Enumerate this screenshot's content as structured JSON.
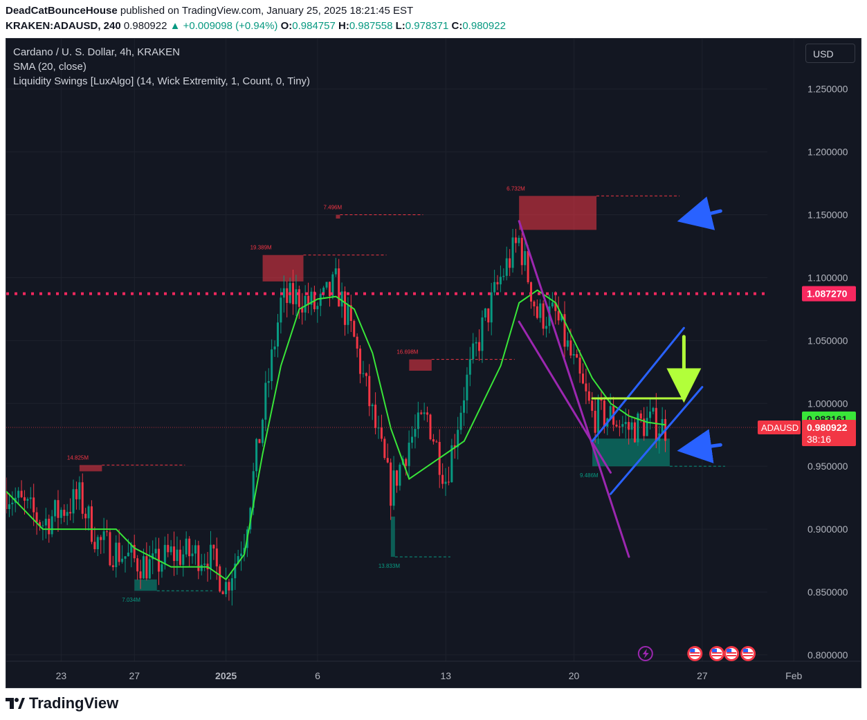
{
  "header": {
    "author": "DeadCatBounceHouse",
    "published": " published on TradingView.com, January 25, 2025 18:21:45 EST",
    "symbol": "KRAKEN:ADAUSD, 240",
    "last": "0.980922",
    "change": "▲ +0.009098 (+0.94%)",
    "o_label": "O:",
    "o": "0.984757",
    "h_label": "H:",
    "h": "0.987558",
    "l_label": "L:",
    "l": "0.978371",
    "c_label": "C:",
    "c": "0.980922"
  },
  "legend": {
    "title": "Cardano / U. S. Dollar, 4h, KRAKEN",
    "sma": "SMA (20, close)",
    "indicator": "Liquidity Swings [LuxAlgo] (14, Wick Extremity, 1, Count, 0, Tiny)"
  },
  "currency_button": "USD",
  "footer": {
    "brand": "TradingView"
  },
  "colors": {
    "background": "#131722",
    "up": "#089981",
    "down": "#f23645",
    "sma": "#39e639",
    "dotted_level": "#f7285f",
    "channel_purple": "#9c27b0",
    "channel_blue": "#2962ff",
    "target_green": "#b2ff3a"
  },
  "chart_data": {
    "type": "candlestick",
    "ylim": [
      0.795,
      1.29
    ],
    "y_ticks": [
      "1.250000",
      "1.200000",
      "1.150000",
      "1.100000",
      "1.050000",
      "1.000000",
      "0.950000",
      "0.900000",
      "0.850000",
      "0.800000"
    ],
    "x_ticks": [
      "23",
      "27",
      "2025",
      "6",
      "13",
      "20",
      "27",
      "Feb"
    ],
    "labels": {
      "dotted_level": "1.087270",
      "sma_value": "0.983161",
      "symbol_tag": "ADAUSD",
      "last_price": "0.980922",
      "countdown": "38:16"
    },
    "price_path": [
      [
        "2024-12-20",
        0.93
      ],
      [
        "2024-12-22",
        0.905
      ],
      [
        "2024-12-24",
        0.925
      ],
      [
        "2024-12-25",
        0.89
      ],
      [
        "2024-12-27",
        0.875
      ],
      [
        "2024-12-28",
        0.87
      ],
      [
        "2024-12-29",
        0.88
      ],
      [
        "2024-12-31",
        0.88
      ],
      [
        "2025-01-01",
        0.855
      ],
      [
        "2025-01-02",
        0.895
      ],
      [
        "2025-01-03",
        0.99
      ],
      [
        "2025-01-04",
        1.08
      ],
      [
        "2025-01-05",
        1.085
      ],
      [
        "2025-01-06",
        1.075
      ],
      [
        "2025-01-07",
        1.095
      ],
      [
        "2025-01-08",
        1.05
      ],
      [
        "2025-01-09",
        0.99
      ],
      [
        "2025-01-10",
        0.93
      ],
      [
        "2025-01-11",
        0.97
      ],
      [
        "2025-01-12",
        0.99
      ],
      [
        "2025-01-13",
        0.94
      ],
      [
        "2025-01-14",
        1.01
      ],
      [
        "2025-01-15",
        1.06
      ],
      [
        "2025-01-16",
        1.1
      ],
      [
        "2025-01-17",
        1.13
      ],
      [
        "2025-01-18",
        1.07
      ],
      [
        "2025-01-19",
        1.07
      ],
      [
        "2025-01-20",
        1.03
      ],
      [
        "2025-01-21",
        0.99
      ],
      [
        "2025-01-22",
        0.99
      ],
      [
        "2025-01-23",
        0.98
      ],
      [
        "2025-01-24",
        0.985
      ],
      [
        "2025-01-25",
        0.981
      ]
    ],
    "sma_path": [
      [
        "2024-12-20",
        0.93
      ],
      [
        "2024-12-22",
        0.9
      ],
      [
        "2024-12-24",
        0.9
      ],
      [
        "2024-12-26",
        0.9
      ],
      [
        "2024-12-27",
        0.885
      ],
      [
        "2024-12-29",
        0.87
      ],
      [
        "2024-12-31",
        0.87
      ],
      [
        "2025-01-01",
        0.86
      ],
      [
        "2025-01-02",
        0.88
      ],
      [
        "2025-01-03",
        0.96
      ],
      [
        "2025-01-04",
        1.03
      ],
      [
        "2025-01-05",
        1.075
      ],
      [
        "2025-01-06",
        1.083
      ],
      [
        "2025-01-07",
        1.085
      ],
      [
        "2025-01-08",
        1.075
      ],
      [
        "2025-01-09",
        1.04
      ],
      [
        "2025-01-10",
        0.98
      ],
      [
        "2025-01-11",
        0.94
      ],
      [
        "2025-01-12",
        0.95
      ],
      [
        "2025-01-13",
        0.96
      ],
      [
        "2025-01-14",
        0.97
      ],
      [
        "2025-01-15",
        1.0
      ],
      [
        "2025-01-16",
        1.03
      ],
      [
        "2025-01-17",
        1.08
      ],
      [
        "2025-01-18",
        1.09
      ],
      [
        "2025-01-19",
        1.08
      ],
      [
        "2025-01-20",
        1.05
      ],
      [
        "2025-01-21",
        1.02
      ],
      [
        "2025-01-22",
        1.0
      ],
      [
        "2025-01-23",
        0.99
      ],
      [
        "2025-01-24",
        0.985
      ],
      [
        "2025-01-25",
        0.983
      ]
    ],
    "swing_zones": [
      {
        "label": "14.825M",
        "kind": "high",
        "x0": "2024-12-24",
        "x1": "2024-12-25",
        "y0": 0.946,
        "y1": 0.951
      },
      {
        "label": "7.034M",
        "kind": "low",
        "x0": "2024-12-27",
        "x1": "2024-12-28",
        "y0": 0.851,
        "y1": 0.86
      },
      {
        "label": "19.389M",
        "kind": "high",
        "x0": "2025-01-03",
        "x1": "2025-01-05",
        "y0": 1.097,
        "y1": 1.118
      },
      {
        "label": "7.496M",
        "kind": "high",
        "x0": "2025-01-07",
        "x1": "2025-01-07",
        "y0": 1.147,
        "y1": 1.15
      },
      {
        "label": "13.833M",
        "kind": "low",
        "x0": "2025-01-10",
        "x1": "2025-01-10",
        "y0": 0.878,
        "y1": 0.91
      },
      {
        "label": "16.698M",
        "kind": "high",
        "x0": "2025-01-11",
        "x1": "2025-01-12",
        "y0": 1.026,
        "y1": 1.035
      },
      {
        "label": "6.732M",
        "kind": "high",
        "x0": "2025-01-17",
        "x1": "2025-01-21",
        "y0": 1.138,
        "y1": 1.165
      },
      {
        "label": "9.486M",
        "kind": "low",
        "x0": "2025-01-21",
        "x1": "2025-01-25",
        "y0": 0.95,
        "y1": 0.972
      }
    ],
    "dotted_level": 1.08727,
    "last_price": 0.980922,
    "drawings": [
      {
        "type": "line",
        "color": "purple",
        "from": [
          "2025-01-17",
          1.145
        ],
        "to": [
          "2025-01-23",
          0.878
        ]
      },
      {
        "type": "line",
        "color": "purple",
        "from": [
          "2025-01-17",
          1.065
        ],
        "to": [
          "2025-01-22",
          0.945
        ]
      },
      {
        "type": "line",
        "color": "blue",
        "from": [
          "2025-01-21",
          0.97
        ],
        "to": [
          "2025-01-26",
          1.06
        ]
      },
      {
        "type": "line",
        "color": "blue",
        "from": [
          "2025-01-22",
          0.928
        ],
        "to": [
          "2025-01-27",
          1.013
        ]
      },
      {
        "type": "line",
        "color": "green",
        "from": [
          "2025-01-21",
          1.004
        ],
        "to": [
          "2025-01-26",
          1.004
        ]
      },
      {
        "type": "arrow",
        "color": "green",
        "from": [
          "2025-01-26",
          1.053
        ],
        "to": [
          "2025-01-26",
          1.006
        ]
      },
      {
        "type": "arrow",
        "color": "blue",
        "from": [
          "2025-01-28",
          1.153
        ],
        "to": [
          "2025-01-26",
          1.146
        ]
      },
      {
        "type": "arrow",
        "color": "blue",
        "from": [
          "2025-01-28",
          0.967
        ],
        "to": [
          "2025-01-26",
          0.963
        ]
      }
    ]
  }
}
